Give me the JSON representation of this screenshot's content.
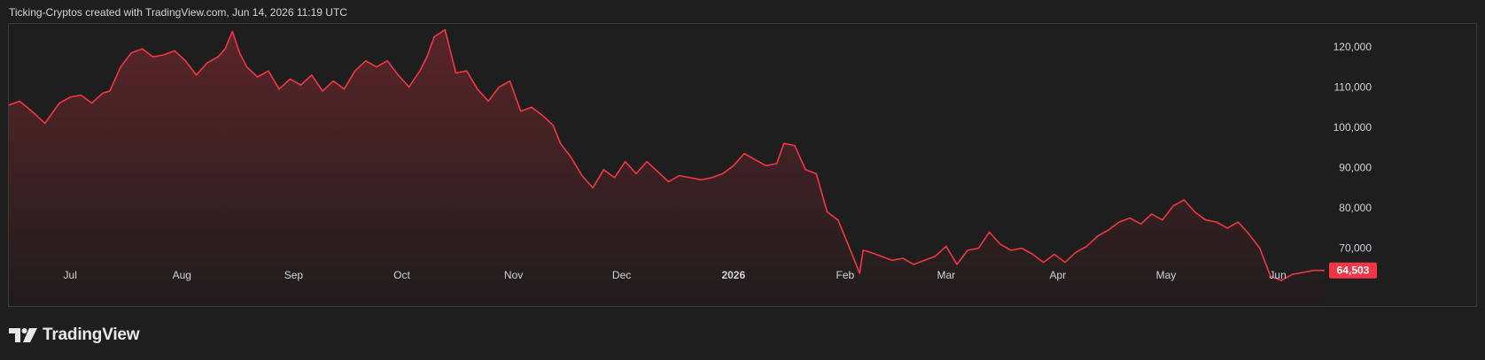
{
  "header": {
    "text": "Ticking-Cryptos created with TradingView.com, Jun 14, 2026 11:19 UTC"
  },
  "brand": {
    "name": "TradingView",
    "logo_icon": "tradingview-logo-icon"
  },
  "colors": {
    "background": "#1e1e1e",
    "line": "#f23645",
    "area_top": "#5a2529",
    "area_bottom": "#1f1c1d",
    "last_price_bg": "#f23645",
    "text": "#d1d4dc",
    "frame": "#3a3a3a"
  },
  "chart_data": {
    "type": "area",
    "x_labels": [
      "Jul",
      "Aug",
      "Sep",
      "Oct",
      "Nov",
      "Dec",
      "2026",
      "Feb",
      "Mar",
      "Apr",
      "May",
      "Jun"
    ],
    "x_labels_bold": [
      "2026"
    ],
    "y_ticks": [
      70000,
      80000,
      90000,
      100000,
      110000,
      120000
    ],
    "y_tick_labels": [
      "70,000",
      "80,000",
      "90,000",
      "100,000",
      "110,000",
      "120,000"
    ],
    "ylim": [
      55650,
      125900
    ],
    "x_start": "2025-06-14",
    "x_end": "2026-06-14",
    "last_value_label": "64,503",
    "grid": false,
    "series": [
      {
        "x": [
          "2025-06-14",
          "2025-06-17",
          "2025-06-21",
          "2025-06-24",
          "2025-06-28",
          "2025-07-01",
          "2025-07-04",
          "2025-07-07",
          "2025-07-10",
          "2025-07-12",
          "2025-07-15",
          "2025-07-18",
          "2025-07-21",
          "2025-07-24",
          "2025-07-27",
          "2025-07-30",
          "2025-08-02",
          "2025-08-05",
          "2025-08-08",
          "2025-08-11",
          "2025-08-13",
          "2025-08-15",
          "2025-08-17",
          "2025-08-19",
          "2025-08-22",
          "2025-08-25",
          "2025-08-28",
          "2025-08-31",
          "2025-09-03",
          "2025-09-06",
          "2025-09-09",
          "2025-09-12",
          "2025-09-15",
          "2025-09-18",
          "2025-09-21",
          "2025-09-24",
          "2025-09-27",
          "2025-09-30",
          "2025-10-03",
          "2025-10-06",
          "2025-10-08",
          "2025-10-10",
          "2025-10-13",
          "2025-10-16",
          "2025-10-19",
          "2025-10-22",
          "2025-10-25",
          "2025-10-28",
          "2025-10-31",
          "2025-11-03",
          "2025-11-06",
          "2025-11-09",
          "2025-11-12",
          "2025-11-14",
          "2025-11-17",
          "2025-11-20",
          "2025-11-23",
          "2025-11-26",
          "2025-11-29",
          "2025-12-02",
          "2025-12-05",
          "2025-12-08",
          "2025-12-11",
          "2025-12-14",
          "2025-12-17",
          "2025-12-20",
          "2025-12-23",
          "2025-12-26",
          "2025-12-29",
          "2026-01-01",
          "2026-01-04",
          "2026-01-07",
          "2026-01-10",
          "2026-01-13",
          "2026-01-15",
          "2026-01-18",
          "2026-01-21",
          "2026-01-24",
          "2026-01-27",
          "2026-01-30",
          "2026-02-02",
          "2026-02-05",
          "2026-02-06",
          "2026-02-08",
          "2026-02-11",
          "2026-02-14",
          "2026-02-17",
          "2026-02-20",
          "2026-02-23",
          "2026-02-26",
          "2026-03-01",
          "2026-03-04",
          "2026-03-07",
          "2026-03-10",
          "2026-03-13",
          "2026-03-16",
          "2026-03-19",
          "2026-03-22",
          "2026-03-25",
          "2026-03-28",
          "2026-03-31",
          "2026-04-03",
          "2026-04-06",
          "2026-04-09",
          "2026-04-12",
          "2026-04-15",
          "2026-04-18",
          "2026-04-21",
          "2026-04-24",
          "2026-04-27",
          "2026-04-30",
          "2026-05-03",
          "2026-05-06",
          "2026-05-09",
          "2026-05-12",
          "2026-05-15",
          "2026-05-18",
          "2026-05-21",
          "2026-05-24",
          "2026-05-27",
          "2026-05-30",
          "2026-06-02",
          "2026-06-05",
          "2026-06-08",
          "2026-06-11",
          "2026-06-14"
        ],
        "values": [
          105500,
          106500,
          103500,
          101000,
          106000,
          107500,
          108000,
          106000,
          108500,
          109000,
          115000,
          118500,
          119500,
          117500,
          118000,
          119000,
          116500,
          113000,
          116000,
          117500,
          119500,
          123800,
          118500,
          115000,
          112500,
          114000,
          109500,
          112000,
          110500,
          113000,
          109000,
          111500,
          109500,
          114000,
          116500,
          115000,
          116500,
          113000,
          110000,
          114000,
          117500,
          122500,
          124200,
          113500,
          114000,
          109500,
          106500,
          110000,
          111500,
          104000,
          105000,
          103000,
          100500,
          96000,
          92500,
          88000,
          85000,
          89500,
          87500,
          91500,
          88500,
          91500,
          89000,
          86500,
          88000,
          87500,
          87000,
          87500,
          88500,
          90500,
          93500,
          92000,
          90500,
          91000,
          96000,
          95500,
          89500,
          88500,
          79000,
          77000,
          70500,
          63800,
          69500,
          69000,
          68000,
          67000,
          67500,
          66000,
          67000,
          68000,
          70500,
          66000,
          69500,
          70000,
          74000,
          71000,
          69500,
          70000,
          68500,
          66500,
          68500,
          66500,
          69000,
          70500,
          73000,
          74500,
          76500,
          77500,
          76000,
          78500,
          77000,
          80500,
          82000,
          79000,
          77000,
          76500,
          75000,
          76500,
          73500,
          70000,
          63000,
          62000,
          63500,
          64000,
          64500,
          64503
        ]
      }
    ]
  }
}
